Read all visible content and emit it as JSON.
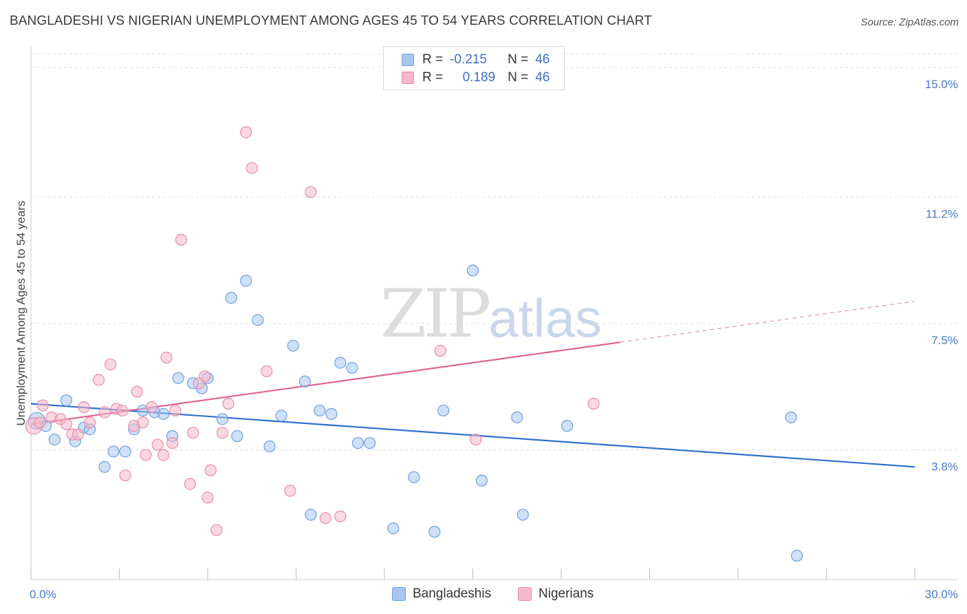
{
  "title": "BANGLADESHI VS NIGERIAN UNEMPLOYMENT AMONG AGES 45 TO 54 YEARS CORRELATION CHART",
  "source": "Source: ZipAtlas.com",
  "watermark": {
    "zip": "ZIP",
    "atlas": "atlas"
  },
  "legend": {
    "rows": [
      {
        "r_label": "R =",
        "r_value": "-0.215",
        "n_label": "N =",
        "n_value": "46",
        "color": "#a9c6f0"
      },
      {
        "r_label": "R =",
        "r_value": "0.189",
        "n_label": "N =",
        "n_value": "46",
        "color": "#f6b8cb"
      }
    ]
  },
  "bottom_legend": [
    {
      "label": "Bangladeshis",
      "color": "#a9c6f0"
    },
    {
      "label": "Nigerians",
      "color": "#f6b8cb"
    }
  ],
  "chart_data": {
    "type": "scatter",
    "title": "BANGLADESHI VS NIGERIAN UNEMPLOYMENT AMONG AGES 45 TO 54 YEARS CORRELATION CHART",
    "xlabel": "",
    "ylabel": "Unemployment Among Ages 45 to 54 years",
    "xlim": [
      0,
      30
    ],
    "ylim": [
      0,
      15.4
    ],
    "x_tick_labels": [
      "0.0%",
      "30.0%"
    ],
    "y_ticks": [
      3.8,
      7.5,
      11.2,
      15.0
    ],
    "y_tick_labels": [
      "3.8%",
      "7.5%",
      "11.2%",
      "15.0%"
    ],
    "grid": true,
    "series": [
      {
        "name": "Bangladeshis",
        "color": "#a9c6f0",
        "stroke": "#6d9ee2",
        "trend": {
          "x": [
            0,
            30
          ],
          "y": [
            5.15,
            3.3
          ],
          "color": "#2e6fd0"
        },
        "points": [
          [
            0.2,
            4.65
          ],
          [
            0.5,
            4.5
          ],
          [
            0.8,
            4.1
          ],
          [
            1.2,
            5.25
          ],
          [
            1.5,
            4.05
          ],
          [
            1.8,
            4.45
          ],
          [
            2.0,
            4.4
          ],
          [
            2.5,
            3.3
          ],
          [
            2.8,
            3.75
          ],
          [
            3.2,
            3.75
          ],
          [
            3.5,
            4.4
          ],
          [
            3.8,
            4.95
          ],
          [
            4.2,
            4.9
          ],
          [
            4.5,
            4.85
          ],
          [
            4.8,
            4.2
          ],
          [
            5.0,
            5.9
          ],
          [
            5.5,
            5.75
          ],
          [
            5.8,
            5.6
          ],
          [
            6.0,
            5.9
          ],
          [
            6.5,
            4.7
          ],
          [
            6.8,
            8.25
          ],
          [
            7.0,
            4.2
          ],
          [
            7.3,
            8.75
          ],
          [
            7.7,
            7.6
          ],
          [
            8.1,
            3.9
          ],
          [
            8.5,
            4.8
          ],
          [
            8.9,
            6.85
          ],
          [
            9.3,
            5.8
          ],
          [
            9.5,
            1.9
          ],
          [
            9.8,
            4.95
          ],
          [
            10.2,
            4.85
          ],
          [
            10.5,
            6.35
          ],
          [
            10.9,
            6.2
          ],
          [
            11.1,
            4.0
          ],
          [
            11.5,
            4.0
          ],
          [
            12.3,
            1.5
          ],
          [
            13.0,
            3.0
          ],
          [
            13.7,
            1.4
          ],
          [
            14.0,
            4.95
          ],
          [
            15.0,
            9.05
          ],
          [
            15.3,
            2.9
          ],
          [
            16.5,
            4.75
          ],
          [
            16.7,
            1.9
          ],
          [
            18.2,
            4.5
          ],
          [
            25.8,
            4.75
          ],
          [
            26.0,
            0.7
          ]
        ]
      },
      {
        "name": "Nigerians",
        "color": "#f6b8cb",
        "stroke": "#ea8ba7",
        "trend": {
          "x": [
            0,
            20
          ],
          "y": [
            4.55,
            6.95
          ],
          "dashed_to": {
            "x": 30,
            "y": 8.15
          },
          "color": "#e0648d"
        },
        "points": [
          [
            0.1,
            4.5
          ],
          [
            0.3,
            4.6
          ],
          [
            0.4,
            5.1
          ],
          [
            0.7,
            4.75
          ],
          [
            1.0,
            4.7
          ],
          [
            1.2,
            4.55
          ],
          [
            1.4,
            4.25
          ],
          [
            1.6,
            4.25
          ],
          [
            1.8,
            5.05
          ],
          [
            2.0,
            4.6
          ],
          [
            2.3,
            5.85
          ],
          [
            2.5,
            4.9
          ],
          [
            2.7,
            6.3
          ],
          [
            2.9,
            5.0
          ],
          [
            3.1,
            4.95
          ],
          [
            3.2,
            3.05
          ],
          [
            3.5,
            4.5
          ],
          [
            3.6,
            5.5
          ],
          [
            3.8,
            4.6
          ],
          [
            3.9,
            3.65
          ],
          [
            4.1,
            5.05
          ],
          [
            4.3,
            3.95
          ],
          [
            4.5,
            3.65
          ],
          [
            4.6,
            6.5
          ],
          [
            4.8,
            4.0
          ],
          [
            4.9,
            4.95
          ],
          [
            5.1,
            9.95
          ],
          [
            5.4,
            2.8
          ],
          [
            5.5,
            4.3
          ],
          [
            5.7,
            5.75
          ],
          [
            5.9,
            5.95
          ],
          [
            6.0,
            2.4
          ],
          [
            6.1,
            3.2
          ],
          [
            6.3,
            1.45
          ],
          [
            6.5,
            4.3
          ],
          [
            6.7,
            5.15
          ],
          [
            7.3,
            13.1
          ],
          [
            7.5,
            12.05
          ],
          [
            8.0,
            6.1
          ],
          [
            8.8,
            2.6
          ],
          [
            9.5,
            11.35
          ],
          [
            10.0,
            1.8
          ],
          [
            10.5,
            1.85
          ],
          [
            13.9,
            6.7
          ],
          [
            15.1,
            4.1
          ],
          [
            19.1,
            5.15
          ]
        ]
      }
    ]
  }
}
